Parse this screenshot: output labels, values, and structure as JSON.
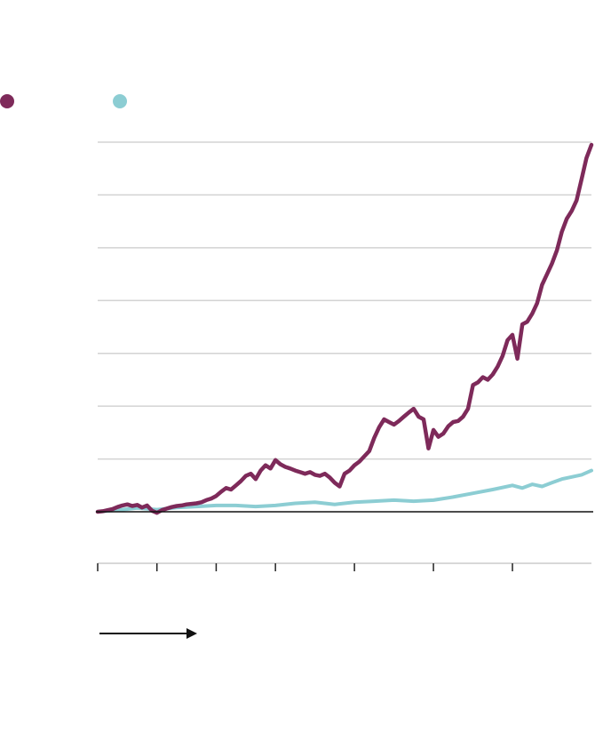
{
  "chart_data": {
    "type": "line",
    "title": "",
    "xlabel": "",
    "ylabel": "",
    "grid": true,
    "legend_placement": "top-left",
    "ylim": [
      0,
      7
    ],
    "xlim": [
      0,
      100
    ],
    "x_ticks": [
      0,
      12,
      24,
      36,
      52,
      68,
      84
    ],
    "gridlines": [
      0,
      1,
      2,
      3,
      4,
      5,
      6,
      7
    ],
    "series": [
      {
        "name": "",
        "color": "#7e2a5a",
        "points": [
          [
            0,
            0.0
          ],
          [
            1,
            0.01
          ],
          [
            2,
            0.03
          ],
          [
            3,
            0.05
          ],
          [
            4,
            0.09
          ],
          [
            5,
            0.12
          ],
          [
            6,
            0.14
          ],
          [
            7,
            0.11
          ],
          [
            8,
            0.13
          ],
          [
            9,
            0.08
          ],
          [
            10,
            0.12
          ],
          [
            11,
            0.02
          ],
          [
            12,
            -0.02
          ],
          [
            13,
            0.03
          ],
          [
            14,
            0.06
          ],
          [
            15,
            0.09
          ],
          [
            16,
            0.11
          ],
          [
            17,
            0.12
          ],
          [
            18,
            0.14
          ],
          [
            19,
            0.15
          ],
          [
            20,
            0.16
          ],
          [
            21,
            0.18
          ],
          [
            22,
            0.22
          ],
          [
            23,
            0.25
          ],
          [
            24,
            0.3
          ],
          [
            25,
            0.38
          ],
          [
            26,
            0.45
          ],
          [
            27,
            0.42
          ],
          [
            28,
            0.5
          ],
          [
            29,
            0.58
          ],
          [
            30,
            0.68
          ],
          [
            31,
            0.72
          ],
          [
            32,
            0.62
          ],
          [
            33,
            0.78
          ],
          [
            34,
            0.88
          ],
          [
            35,
            0.82
          ],
          [
            36,
            0.98
          ],
          [
            37,
            0.9
          ],
          [
            38,
            0.85
          ],
          [
            39,
            0.82
          ],
          [
            40,
            0.78
          ],
          [
            41,
            0.75
          ],
          [
            42,
            0.72
          ],
          [
            43,
            0.75
          ],
          [
            44,
            0.7
          ],
          [
            45,
            0.68
          ],
          [
            46,
            0.72
          ],
          [
            47,
            0.65
          ],
          [
            48,
            0.55
          ],
          [
            49,
            0.48
          ],
          [
            50,
            0.72
          ],
          [
            51,
            0.78
          ],
          [
            52,
            0.88
          ],
          [
            53,
            0.95
          ],
          [
            54,
            1.05
          ],
          [
            55,
            1.15
          ],
          [
            56,
            1.4
          ],
          [
            57,
            1.6
          ],
          [
            58,
            1.75
          ],
          [
            59,
            1.7
          ],
          [
            60,
            1.65
          ],
          [
            61,
            1.72
          ],
          [
            62,
            1.8
          ],
          [
            63,
            1.88
          ],
          [
            64,
            1.95
          ],
          [
            65,
            1.8
          ],
          [
            66,
            1.75
          ],
          [
            67,
            1.2
          ],
          [
            68,
            1.55
          ],
          [
            69,
            1.42
          ],
          [
            70,
            1.48
          ],
          [
            71,
            1.62
          ],
          [
            72,
            1.7
          ],
          [
            73,
            1.72
          ],
          [
            74,
            1.8
          ],
          [
            75,
            1.95
          ],
          [
            76,
            2.4
          ],
          [
            77,
            2.45
          ],
          [
            78,
            2.55
          ],
          [
            79,
            2.5
          ],
          [
            80,
            2.6
          ],
          [
            81,
            2.75
          ],
          [
            82,
            2.95
          ],
          [
            83,
            3.25
          ],
          [
            84,
            3.35
          ],
          [
            85,
            2.9
          ],
          [
            86,
            3.55
          ],
          [
            87,
            3.6
          ],
          [
            88,
            3.75
          ],
          [
            89,
            3.95
          ],
          [
            90,
            4.3
          ],
          [
            91,
            4.5
          ],
          [
            92,
            4.7
          ],
          [
            93,
            4.95
          ],
          [
            94,
            5.3
          ],
          [
            95,
            5.55
          ],
          [
            96,
            5.7
          ],
          [
            97,
            5.9
          ],
          [
            98,
            6.3
          ],
          [
            99,
            6.7
          ],
          [
            100,
            6.95
          ]
        ]
      },
      {
        "name": "",
        "color": "#8ccdd3",
        "points": [
          [
            0,
            0.0
          ],
          [
            4,
            0.03
          ],
          [
            8,
            0.07
          ],
          [
            12,
            0.04
          ],
          [
            16,
            0.08
          ],
          [
            20,
            0.1
          ],
          [
            24,
            0.12
          ],
          [
            28,
            0.12
          ],
          [
            32,
            0.1
          ],
          [
            36,
            0.12
          ],
          [
            40,
            0.16
          ],
          [
            44,
            0.18
          ],
          [
            48,
            0.14
          ],
          [
            52,
            0.18
          ],
          [
            56,
            0.2
          ],
          [
            60,
            0.22
          ],
          [
            64,
            0.2
          ],
          [
            68,
            0.22
          ],
          [
            72,
            0.28
          ],
          [
            76,
            0.35
          ],
          [
            80,
            0.42
          ],
          [
            84,
            0.5
          ],
          [
            86,
            0.45
          ],
          [
            88,
            0.52
          ],
          [
            90,
            0.48
          ],
          [
            92,
            0.55
          ],
          [
            94,
            0.62
          ],
          [
            96,
            0.66
          ],
          [
            98,
            0.7
          ],
          [
            100,
            0.78
          ]
        ]
      }
    ],
    "annotations": []
  }
}
